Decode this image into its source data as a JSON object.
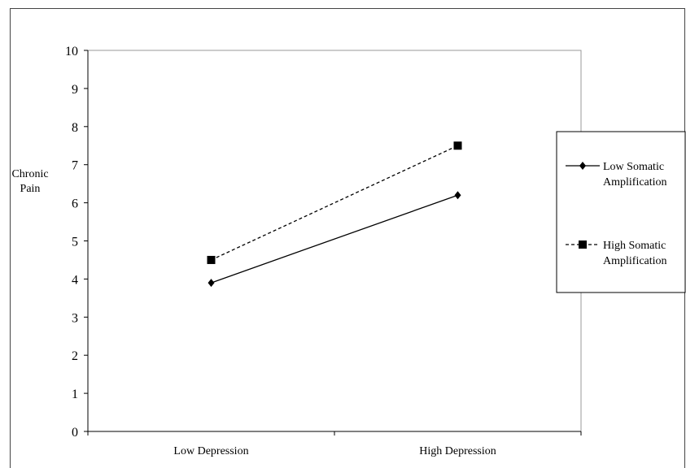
{
  "chart_data": {
    "type": "line",
    "title": "",
    "xlabel": "",
    "ylabel": "Chronic Pain",
    "ylabel_lines": [
      "Chronic",
      "Pain"
    ],
    "categories": [
      "Low Depression",
      "High Depression"
    ],
    "ylim": [
      0,
      10
    ],
    "yticks": [
      0,
      1,
      2,
      3,
      4,
      5,
      6,
      7,
      8,
      9,
      10
    ],
    "grid": false,
    "legend_position": "right",
    "series": [
      {
        "name": "Low Somatic Amplification",
        "name_lines": [
          "Low Somatic",
          "Amplification"
        ],
        "values": [
          3.9,
          6.2
        ],
        "line_style": "solid",
        "marker": "diamond",
        "color": "#000000"
      },
      {
        "name": "High Somatic Amplification",
        "name_lines": [
          "High Somatic",
          "Amplification"
        ],
        "values": [
          4.5,
          7.5
        ],
        "line_style": "dashed",
        "marker": "square",
        "color": "#000000"
      }
    ]
  }
}
